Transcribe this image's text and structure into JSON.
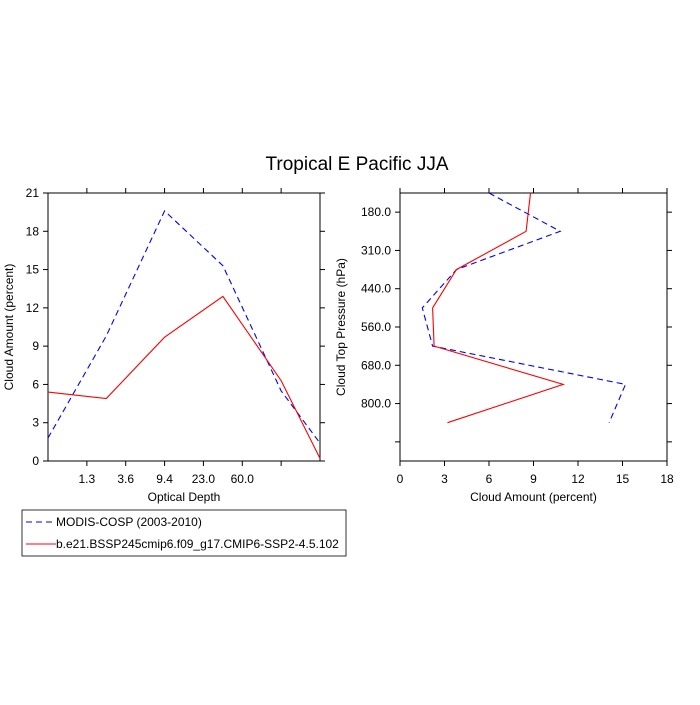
{
  "title": "Tropical E Pacific JJA",
  "chart_data": [
    {
      "type": "line",
      "xlabel": "Optical Depth",
      "ylabel": "Cloud Amount (percent)",
      "xlim": [
        0,
        7
      ],
      "ylim": [
        0,
        21
      ],
      "xticks": [
        1,
        2,
        3,
        4,
        5,
        6
      ],
      "xtick_labels": [
        "1.3",
        "3.6",
        "9.4",
        "23.0",
        "60.0"
      ],
      "xtick_label_positions": [
        1,
        2,
        3,
        4,
        5
      ],
      "yticks": [
        0,
        3,
        6,
        9,
        12,
        15,
        18,
        21
      ],
      "ytick_labels": [
        "0",
        "3",
        "6",
        "9",
        "12",
        "15",
        "18",
        "21"
      ],
      "series": [
        {
          "name": "MODIS-COSP (2003-2010)",
          "color": "#0000ff",
          "dash": true,
          "x": [
            0,
            1.5,
            3,
            4.5,
            6,
            7
          ],
          "y": [
            1.8,
            9.8,
            19.6,
            15.3,
            5.5,
            1.4
          ]
        },
        {
          "name": "b.e21.BSSP245cmip6.f09_g17.CMIP6-SSP2-4.5.102",
          "color": "#ff0000",
          "dash": false,
          "x": [
            0,
            1.5,
            3,
            4.5,
            6,
            7
          ],
          "y": [
            5.4,
            4.9,
            9.7,
            12.9,
            6.3,
            0.2
          ]
        }
      ]
    },
    {
      "type": "line",
      "xlabel": "Cloud Amount (percent)",
      "ylabel": "Cloud Top Pressure (hPa)",
      "xlim": [
        0,
        18
      ],
      "ylim": [
        1,
        8
      ],
      "y_inverted": true,
      "xticks": [
        0,
        3,
        6,
        9,
        12,
        15,
        18
      ],
      "xtick_labels": [
        "0",
        "3",
        "6",
        "9",
        "12",
        "15",
        "18"
      ],
      "yticks": [
        1.5,
        2.5,
        3.5,
        4.5,
        5.5,
        6.5,
        7.5
      ],
      "ytick_labels": [
        "180.0",
        "310.0",
        "440.0",
        "560.0",
        "680.0",
        "800.0"
      ],
      "ytick_label_positions": [
        1.5,
        2.5,
        3.5,
        4.5,
        5.5,
        6.5
      ],
      "series": [
        {
          "name": "MODIS-COSP (2003-2010)",
          "color": "#0000ff",
          "dash": true,
          "x": [
            6.0,
            10.8,
            3.8,
            1.5,
            2.2,
            15.2,
            14.1
          ],
          "y": [
            1,
            2,
            3,
            4,
            5,
            6,
            7
          ]
        },
        {
          "name": "b.e21.BSSP245cmip6.f09_g17.CMIP6-SSP2-4.5.102",
          "color": "#ff0000",
          "dash": false,
          "x": [
            8.8,
            8.5,
            3.8,
            2.2,
            2.3,
            11.0,
            3.2
          ],
          "y": [
            1,
            2,
            3,
            4,
            5,
            6,
            7
          ]
        }
      ]
    }
  ],
  "legend": {
    "placement": "bottom-left",
    "entries": [
      {
        "label": "MODIS-COSP (2003-2010)",
        "color": "#0000ff",
        "dash": true
      },
      {
        "label": "b.e21.BSSP245cmip6.f09_g17.CMIP6-SSP2-4.5.102",
        "color": "#ff0000",
        "dash": false
      }
    ]
  }
}
